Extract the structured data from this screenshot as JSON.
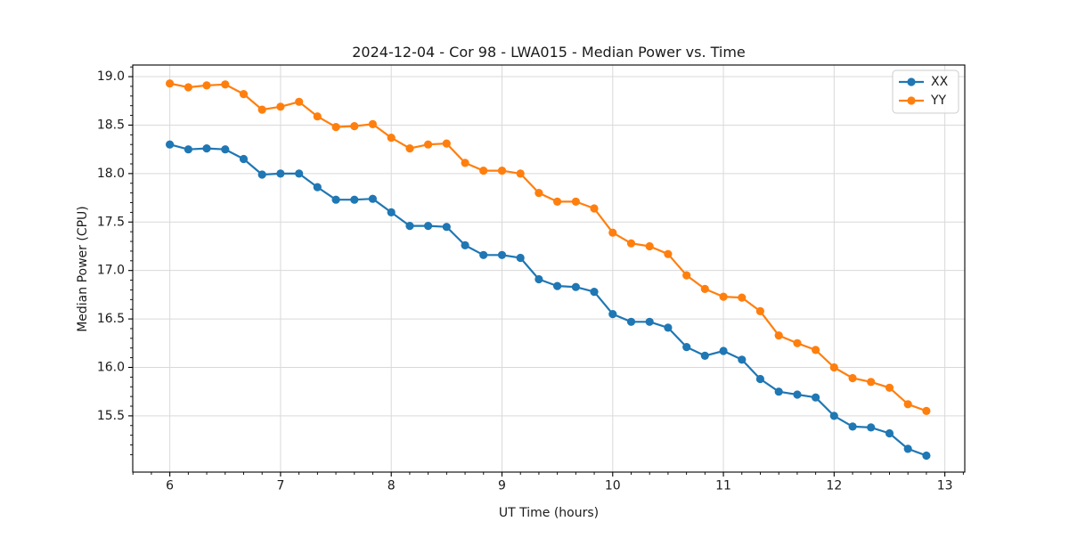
{
  "chart_data": {
    "type": "line",
    "title": "2024-12-04 - Cor 98 - LWA015 - Median Power vs. Time",
    "xlabel": "UT Time (hours)",
    "ylabel": "Median Power (CPU)",
    "xlim": [
      5.665,
      13.18
    ],
    "ylim": [
      14.92,
      19.12
    ],
    "xticks": [
      6,
      7,
      8,
      9,
      10,
      11,
      12,
      13
    ],
    "yticks": [
      15.5,
      16.0,
      16.5,
      17.0,
      17.5,
      18.0,
      18.5,
      19.0
    ],
    "x_minor_step": 0.1666667,
    "y_minor_step": 0.1,
    "grid": true,
    "grid_color": "#d9d9d9",
    "legend_position": "upper right",
    "x": [
      6.0,
      6.167,
      6.333,
      6.5,
      6.667,
      6.833,
      7.0,
      7.167,
      7.333,
      7.5,
      7.667,
      7.833,
      8.0,
      8.167,
      8.333,
      8.5,
      8.667,
      8.833,
      9.0,
      9.167,
      9.333,
      9.5,
      9.667,
      9.833,
      10.0,
      10.167,
      10.333,
      10.5,
      10.667,
      10.833,
      11.0,
      11.167,
      11.333,
      11.5,
      11.667,
      11.833,
      12.0,
      12.167,
      12.333,
      12.5,
      12.667,
      12.833
    ],
    "series": [
      {
        "name": "XX",
        "color": "#1f77b4",
        "values": [
          18.3,
          18.25,
          18.26,
          18.25,
          18.15,
          17.99,
          18.0,
          18.0,
          17.86,
          17.73,
          17.73,
          17.74,
          17.6,
          17.46,
          17.46,
          17.45,
          17.26,
          17.16,
          17.16,
          17.13,
          16.91,
          16.84,
          16.83,
          16.78,
          16.55,
          16.47,
          16.47,
          16.41,
          16.21,
          16.12,
          16.17,
          16.08,
          15.88,
          15.75,
          15.72,
          15.69,
          15.5,
          15.39,
          15.38,
          15.32,
          15.16,
          15.09
        ]
      },
      {
        "name": "YY",
        "color": "#ff7f0e",
        "values": [
          18.93,
          18.89,
          18.91,
          18.92,
          18.82,
          18.66,
          18.69,
          18.74,
          18.59,
          18.48,
          18.49,
          18.51,
          18.37,
          18.26,
          18.3,
          18.31,
          18.11,
          18.03,
          18.03,
          18.0,
          17.8,
          17.71,
          17.71,
          17.64,
          17.39,
          17.28,
          17.25,
          17.17,
          16.95,
          16.81,
          16.73,
          16.72,
          16.58,
          16.33,
          16.25,
          16.18,
          16.0,
          15.89,
          15.85,
          15.79,
          15.62,
          15.55
        ]
      }
    ]
  }
}
